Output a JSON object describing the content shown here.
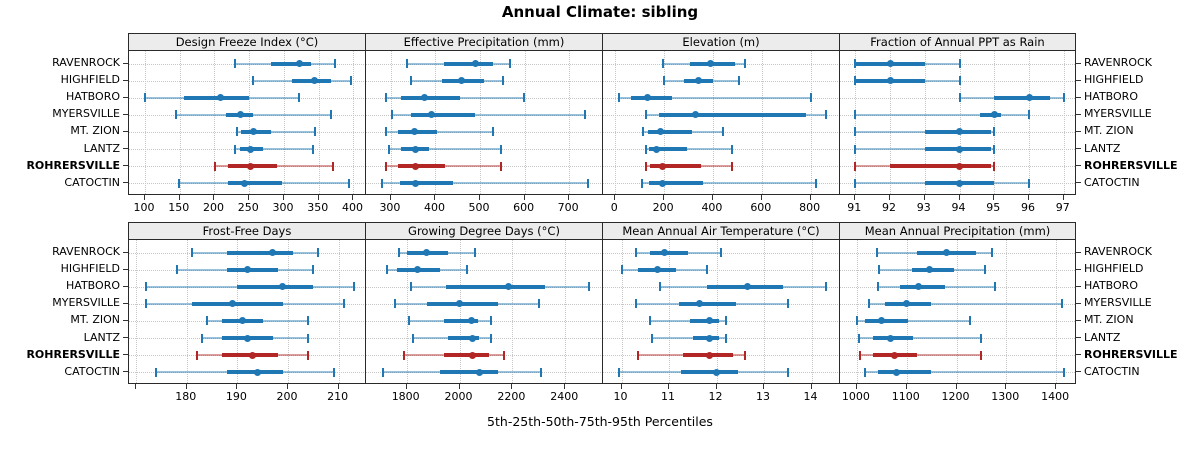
{
  "colors": {
    "series": "#1F77B4",
    "highlight": "#B22626",
    "strip_bg": "#ECECEC",
    "border": "#2A2A2A",
    "grid": "#C6C6C6",
    "tick": "#333333",
    "text": "#000000"
  },
  "chart_data": {
    "type": "scatter",
    "variant": "horizontal percentile interval dot plot (5th-25th-50th-75th-95th), 2x4 trellis panels",
    "title": "Annual Climate: sibling",
    "xlabel": "5th-25th-50th-75th-95th Percentiles",
    "legend": "none",
    "grid": "dotted",
    "categories": [
      "RAVENROCK",
      "HIGHFIELD",
      "HATBORO",
      "MYERSVILLE",
      "MT. ZION",
      "LANTZ",
      "ROHRERSVILLE",
      "CATOCTIN"
    ],
    "highlight": "ROHRERSVILLE",
    "panels": [
      {
        "title": "Design Freeze Index (°C)",
        "row": 0,
        "col": 0,
        "xlim": [
          77,
          418
        ],
        "ticks": [
          100,
          150,
          200,
          250,
          300,
          350,
          400
        ],
        "tick_labels": [
          "100",
          "150",
          "200",
          "250",
          "300",
          "350",
          "400"
        ],
        "series": [
          [
            230,
            281,
            322,
            339,
            373
          ],
          [
            255,
            312,
            344,
            368,
            397
          ],
          [
            100,
            156,
            209,
            249,
            322
          ],
          [
            145,
            216,
            238,
            256,
            368
          ],
          [
            232,
            238,
            256,
            281,
            344
          ],
          [
            230,
            236,
            252,
            270,
            342
          ],
          [
            201,
            220,
            252,
            290,
            371
          ],
          [
            149,
            220,
            243,
            297,
            394
          ]
        ]
      },
      {
        "title": "Effective Precipitation (mm)",
        "row": 0,
        "col": 1,
        "xlim": [
          244,
          776
        ],
        "ticks": [
          300,
          400,
          500,
          600,
          700
        ],
        "tick_labels": [
          "300",
          "400",
          "500",
          "600",
          "700"
        ],
        "series": [
          [
            335,
            420,
            490,
            530,
            568
          ],
          [
            345,
            415,
            458,
            508,
            552
          ],
          [
            288,
            322,
            375,
            455,
            598
          ],
          [
            302,
            345,
            390,
            488,
            735
          ],
          [
            288,
            315,
            352,
            404,
            530
          ],
          [
            296,
            322,
            354,
            385,
            546
          ],
          [
            289,
            315,
            356,
            422,
            547
          ],
          [
            280,
            320,
            354,
            440,
            742
          ]
        ]
      },
      {
        "title": "Elevation (m)",
        "row": 0,
        "col": 2,
        "xlim": [
          -50,
          920
        ],
        "ticks": [
          0,
          200,
          400,
          600,
          800
        ],
        "tick_labels": [
          "0",
          "200",
          "400",
          "600",
          "800"
        ],
        "series": [
          [
            195,
            306,
            390,
            492,
            532
          ],
          [
            200,
            283,
            342,
            399,
            507
          ],
          [
            15,
            65,
            131,
            231,
            800
          ],
          [
            127,
            181,
            327,
            780,
            864
          ],
          [
            115,
            133,
            184,
            314,
            442
          ],
          [
            124,
            140,
            171,
            293,
            478
          ],
          [
            127,
            142,
            195,
            351,
            478
          ],
          [
            110,
            140,
            192,
            360,
            820
          ]
        ]
      },
      {
        "title": "Fraction of Annual PPT as Rain",
        "row": 0,
        "col": 3,
        "xlim": [
          90.56,
          97.38
        ],
        "ticks": [
          91,
          92,
          93,
          94,
          95,
          96,
          97
        ],
        "tick_labels": [
          "91",
          "92",
          "93",
          "94",
          "95",
          "96",
          "97"
        ],
        "series": [
          [
            91,
            91,
            92,
            93,
            94
          ],
          [
            91,
            91,
            92,
            93,
            94
          ],
          [
            94,
            95,
            96,
            96.6,
            97
          ],
          [
            91,
            94.6,
            95,
            95.2,
            96
          ],
          [
            91,
            93,
            94,
            94.9,
            95
          ],
          [
            91,
            93,
            94,
            94.9,
            95
          ],
          [
            91,
            92,
            94,
            94.9,
            95
          ],
          [
            91,
            93,
            94,
            95,
            96
          ]
        ]
      },
      {
        "title": "Frost-Free Days",
        "row": 1,
        "col": 0,
        "xlim": [
          168.6,
          215.4
        ],
        "ticks": [
          170,
          180,
          190,
          200,
          210
        ],
        "tick_labels": [
          "",
          "180",
          "190",
          "200",
          "210"
        ],
        "series": [
          [
            181,
            188,
            197,
            201,
            206
          ],
          [
            178,
            188,
            192,
            198,
            205
          ],
          [
            172,
            190,
            199,
            205,
            213
          ],
          [
            172,
            181,
            189,
            199,
            211
          ],
          [
            184,
            187,
            191,
            195,
            204
          ],
          [
            183,
            187,
            192,
            197,
            204
          ],
          [
            182,
            187,
            193,
            198,
            204
          ],
          [
            174,
            188,
            194,
            199,
            209
          ]
        ]
      },
      {
        "title": "Growing Degree Days (°C)",
        "row": 1,
        "col": 1,
        "xlim": [
          1646,
          2543
        ],
        "ticks": [
          1800,
          2000,
          2200,
          2400
        ],
        "tick_labels": [
          "1800",
          "2000",
          "2200",
          "2400"
        ],
        "series": [
          [
            1770,
            1800,
            1875,
            1955,
            2060
          ],
          [
            1725,
            1765,
            1840,
            1925,
            2030
          ],
          [
            1815,
            1950,
            2185,
            2325,
            2490
          ],
          [
            1755,
            1875,
            2000,
            2145,
            2300
          ],
          [
            1810,
            1940,
            2045,
            2070,
            2120
          ],
          [
            1825,
            1955,
            2050,
            2075,
            2120
          ],
          [
            1790,
            1940,
            2050,
            2110,
            2170
          ],
          [
            1710,
            1925,
            2075,
            2145,
            2310
          ]
        ]
      },
      {
        "title": "Mean Annual Air Temperature (°C)",
        "row": 1,
        "col": 2,
        "xlim": [
          9.61,
          14.6
        ],
        "ticks": [
          10,
          11,
          12,
          13,
          14
        ],
        "tick_labels": [
          "10",
          "11",
          "12",
          "13",
          "14"
        ],
        "series": [
          [
            10.3,
            10.6,
            10.9,
            11.4,
            12.1
          ],
          [
            10.0,
            10.35,
            10.75,
            11.15,
            11.8
          ],
          [
            10.8,
            11.8,
            12.65,
            13.4,
            14.3
          ],
          [
            10.3,
            11.2,
            11.65,
            12.4,
            13.5
          ],
          [
            10.6,
            11.45,
            11.85,
            12.05,
            12.2
          ],
          [
            10.65,
            11.5,
            11.85,
            12.05,
            12.2
          ],
          [
            10.35,
            11.3,
            11.85,
            12.35,
            12.6
          ],
          [
            9.95,
            11.25,
            12.0,
            12.45,
            13.5
          ]
        ]
      },
      {
        "title": "Mean Annual Precipitation (mm)",
        "row": 1,
        "col": 3,
        "xlim": [
          966,
          1442
        ],
        "ticks": [
          1000,
          1100,
          1200,
          1300,
          1400
        ],
        "tick_labels": [
          "1000",
          "1100",
          "1200",
          "1300",
          "1400"
        ],
        "series": [
          [
            1040,
            1120,
            1180,
            1240,
            1272
          ],
          [
            1045,
            1110,
            1145,
            1195,
            1258
          ],
          [
            1043,
            1087,
            1123,
            1177,
            1278
          ],
          [
            1025,
            1056,
            1100,
            1148,
            1412
          ],
          [
            1000,
            1016,
            1050,
            1102,
            1228
          ],
          [
            1005,
            1032,
            1067,
            1112,
            1250
          ],
          [
            1007,
            1032,
            1075,
            1121,
            1250
          ],
          [
            1016,
            1043,
            1080,
            1148,
            1415
          ]
        ]
      }
    ]
  }
}
